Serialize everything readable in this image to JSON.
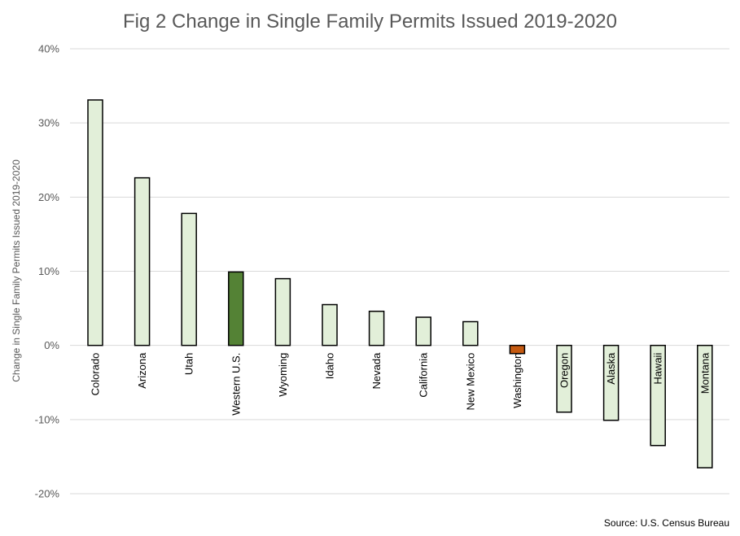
{
  "chart_data": {
    "type": "bar",
    "title": "Fig 2 Change in Single Family Permits Issued 2019-2020",
    "ylabel": "Change in Single Family Permits Issued 2019-2020",
    "xlabel": "",
    "categories": [
      "Colorado",
      "Arizona",
      "Utah",
      "Western U.S.",
      "Wyoming",
      "Idaho",
      "Nevada",
      "California",
      "New Mexico",
      "Washington",
      "Oregon",
      "Alaska",
      "Hawaii",
      "Montana"
    ],
    "values": [
      33.1,
      22.6,
      17.8,
      9.9,
      9.0,
      5.5,
      4.6,
      3.8,
      3.2,
      -1.1,
      -9.0,
      -10.1,
      -13.5,
      -16.5
    ],
    "unit": "%",
    "ylim": [
      -20,
      40
    ],
    "yticks": [
      40,
      30,
      20,
      10,
      0,
      -10,
      -20
    ],
    "ytick_labels": [
      "40%",
      "30%",
      "20%",
      "10%",
      "0%",
      "-10%",
      "-20%"
    ],
    "grid": true,
    "legend": "none",
    "colors": {
      "default": "#e2efd9",
      "Western U.S.": "#548235",
      "Washington": "#c55a11"
    }
  },
  "source": "Source: U.S. Census Bureau"
}
